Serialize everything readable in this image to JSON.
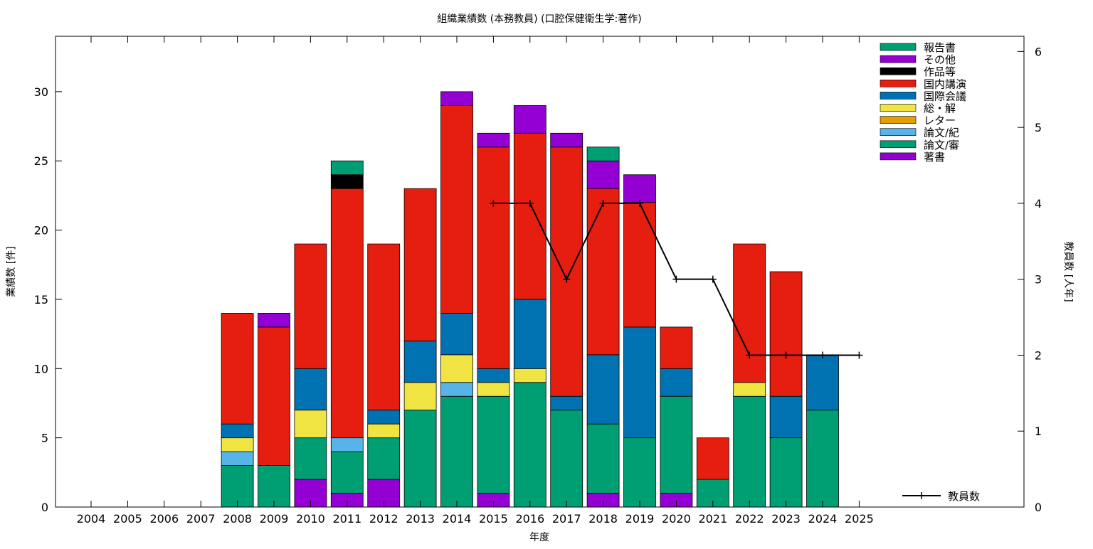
{
  "chart_data": {
    "type": "bar",
    "stacked": true,
    "title": "組織業績数 (本務教員) (口腔保健衛生学:著作)",
    "xlabel": "年度",
    "ylabel": "業績数 [件]",
    "y2label": "教員数 [人年]",
    "ylim": [
      0,
      34
    ],
    "y2lim": [
      0,
      6.2
    ],
    "yticks": [
      0,
      5,
      10,
      15,
      20,
      25,
      30
    ],
    "y2ticks": [
      0,
      1,
      2,
      3,
      4,
      5,
      6
    ],
    "grid": false,
    "legend_position": "top-right",
    "categories": [
      "2004",
      "2005",
      "2006",
      "2007",
      "2008",
      "2009",
      "2010",
      "2011",
      "2012",
      "2013",
      "2014",
      "2015",
      "2016",
      "2017",
      "2018",
      "2019",
      "2020",
      "2021",
      "2022",
      "2023",
      "2024",
      "2025"
    ],
    "series": [
      {
        "name": "著書",
        "color": "#9400d3",
        "values": [
          0,
          0,
          0,
          0,
          0,
          0,
          2,
          1,
          2,
          0,
          0,
          1,
          0,
          0,
          1,
          0,
          1,
          0,
          0,
          0,
          0,
          0
        ]
      },
      {
        "name": "論文/審",
        "color": "#009e73",
        "values": [
          0,
          0,
          0,
          0,
          3,
          3,
          3,
          3,
          3,
          7,
          8,
          7,
          9,
          7,
          5,
          5,
          7,
          2,
          8,
          5,
          7,
          0
        ]
      },
      {
        "name": "論文/紀",
        "color": "#56b4e9",
        "values": [
          0,
          0,
          0,
          0,
          1,
          0,
          0,
          1,
          0,
          0,
          1,
          0,
          0,
          0,
          0,
          0,
          0,
          0,
          0,
          0,
          0,
          0
        ]
      },
      {
        "name": "レター",
        "color": "#e69f00",
        "values": [
          0,
          0,
          0,
          0,
          0,
          0,
          0,
          0,
          0,
          0,
          0,
          0,
          0,
          0,
          0,
          0,
          0,
          0,
          0,
          0,
          0,
          0
        ]
      },
      {
        "name": "総・解",
        "color": "#f0e442",
        "values": [
          0,
          0,
          0,
          0,
          1,
          0,
          2,
          0,
          1,
          2,
          2,
          1,
          1,
          0,
          0,
          0,
          0,
          0,
          1,
          0,
          0,
          0
        ]
      },
      {
        "name": "国際会議",
        "color": "#0072b2",
        "values": [
          0,
          0,
          0,
          0,
          1,
          0,
          3,
          0,
          1,
          3,
          3,
          1,
          5,
          1,
          5,
          8,
          2,
          0,
          0,
          3,
          4,
          0
        ]
      },
      {
        "name": "国内講演",
        "color": "#e51e10",
        "values": [
          0,
          0,
          0,
          0,
          8,
          10,
          9,
          18,
          12,
          11,
          15,
          16,
          12,
          18,
          12,
          9,
          3,
          3,
          10,
          9,
          0,
          0
        ]
      },
      {
        "name": "作品等",
        "color": "#000000",
        "values": [
          0,
          0,
          0,
          0,
          0,
          0,
          0,
          1,
          0,
          0,
          0,
          0,
          0,
          0,
          0,
          0,
          0,
          0,
          0,
          0,
          0,
          0
        ]
      },
      {
        "name": "その他",
        "color": "#9400d3",
        "values": [
          0,
          0,
          0,
          0,
          0,
          1,
          0,
          0,
          0,
          0,
          1,
          1,
          2,
          1,
          2,
          2,
          0,
          0,
          0,
          0,
          0,
          0
        ]
      },
      {
        "name": "報告書",
        "color": "#009e73",
        "values": [
          0,
          0,
          0,
          0,
          0,
          0,
          0,
          1,
          0,
          0,
          0,
          0,
          0,
          0,
          1,
          0,
          0,
          0,
          0,
          0,
          0,
          0
        ]
      }
    ],
    "legend_order": [
      "報告書",
      "その他",
      "作品等",
      "国内講演",
      "国際会議",
      "総・解",
      "レター",
      "論文/紀",
      "論文/審",
      "著書"
    ],
    "line_series": {
      "name": "教員数",
      "axis": "y2",
      "color": "#000000",
      "x": [
        "2015",
        "2016",
        "2017",
        "2018",
        "2019",
        "2020",
        "2021",
        "2022",
        "2023",
        "2024",
        "2025"
      ],
      "values": [
        4,
        4,
        3,
        4,
        4,
        3,
        3,
        2,
        2,
        2,
        2
      ]
    }
  }
}
